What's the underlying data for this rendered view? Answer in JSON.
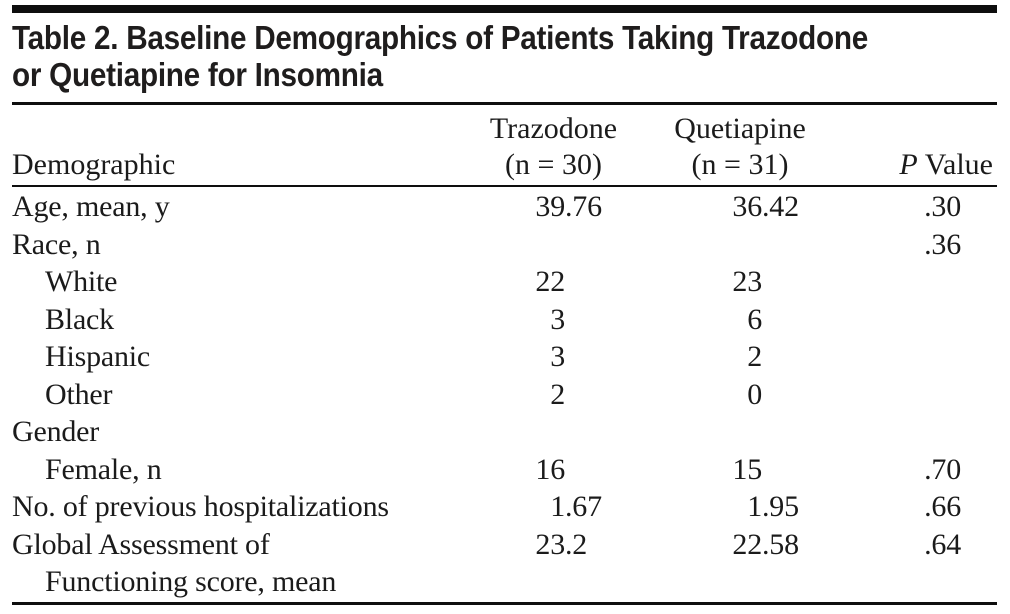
{
  "colors": {
    "background": "#ffffff",
    "text": "#1b1b1b",
    "title": "#1f1d1d",
    "rule": "#0e0e0e"
  },
  "table": {
    "title_lines": [
      "Table 2. Baseline Demographics of Patients Taking Trazodone",
      "or Quetiapine for Insomnia"
    ],
    "header": {
      "demographic": "Demographic",
      "trazodone_name": "Trazodone",
      "trazodone_n": "(n = 30)",
      "quetiapine_name": "Quetiapine",
      "quetiapine_n": "(n = 31)",
      "p_italic": "P",
      "p_rest": " Value"
    },
    "rows": [
      {
        "label": "Age, mean, y",
        "indent": false,
        "trazodone": "39.76",
        "quetiapine": "36.42",
        "p": ".30"
      },
      {
        "label": "Race, n",
        "indent": false,
        "trazodone": "",
        "quetiapine": "",
        "p": ".36"
      },
      {
        "label": "White",
        "indent": true,
        "trazodone": "22",
        "quetiapine": "23",
        "p": ""
      },
      {
        "label": "Black",
        "indent": true,
        "trazodone": "3",
        "quetiapine": "6",
        "p": ""
      },
      {
        "label": "Hispanic",
        "indent": true,
        "trazodone": "3",
        "quetiapine": "2",
        "p": ""
      },
      {
        "label": "Other",
        "indent": true,
        "trazodone": "2",
        "quetiapine": "0",
        "p": ""
      },
      {
        "label": "Gender",
        "indent": false,
        "trazodone": "",
        "quetiapine": "",
        "p": ""
      },
      {
        "label": "Female, n",
        "indent": true,
        "trazodone": "16",
        "quetiapine": "15",
        "p": ".70"
      },
      {
        "label": "No. of previous hospitalizations",
        "indent": false,
        "trazodone": "1.67",
        "quetiapine": "1.95",
        "p": ".66"
      },
      {
        "label": "Global Assessment of",
        "indent": false,
        "trazodone": "23.2",
        "quetiapine": "22.58",
        "p": ".64"
      },
      {
        "label": "Functioning score, mean",
        "indent": true,
        "trazodone": "",
        "quetiapine": "",
        "p": ""
      }
    ]
  }
}
